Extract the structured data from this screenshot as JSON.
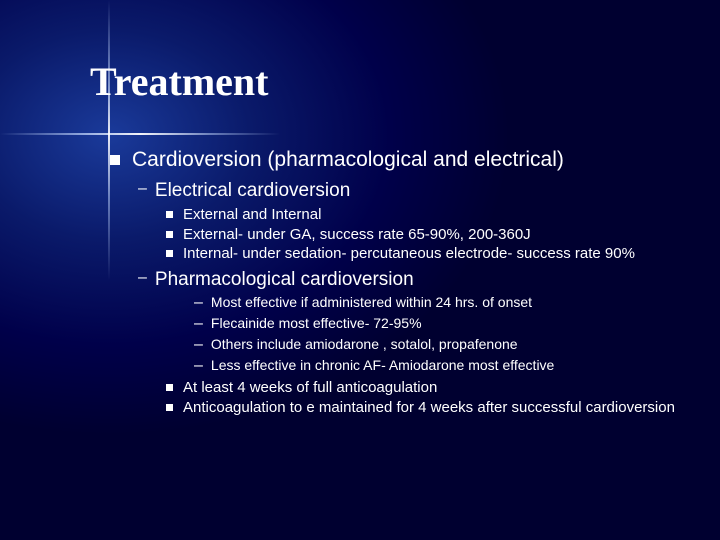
{
  "colors": {
    "background_center": "#1a3a9a",
    "background_mid": "#0a1a6a",
    "background_outer": "#000030",
    "text": "#ffffff",
    "bullet": "#ffffff",
    "flare": "#ffffff"
  },
  "typography": {
    "title_font": "Times New Roman",
    "title_size_pt": 30,
    "title_weight": "bold",
    "body_font": "Verdana",
    "lvl1_size_pt": 16,
    "lvl2_size_pt": 14,
    "lvl3_size_pt": 11,
    "lvl4_size_pt": 10
  },
  "slide": {
    "title": "Treatment",
    "lvl1": {
      "text": "Cardioversion (pharmacological and electrical)"
    },
    "lvl2a": {
      "dash": "–",
      "text": "Electrical cardioversion"
    },
    "lvl3a": [
      "External and Internal",
      "External- under GA, success rate 65-90%, 200-360J",
      "Internal- under sedation- percutaneous electrode- success rate 90%"
    ],
    "lvl2b": {
      "dash": "–",
      "text": "Pharmacological cardioversion"
    },
    "lvl4b": [
      {
        "dash": "–",
        "text": "Most effective if administered within 24 hrs. of onset"
      },
      {
        "dash": "–",
        "text": "Flecainide most effective- 72-95%"
      },
      {
        "dash": "–",
        "text": "Others include amiodarone , sotalol, propafenone"
      },
      {
        "dash": "–",
        "text": "Less effective in chronic AF- Amiodarone most effective"
      }
    ],
    "lvl3c": [
      "At least 4 weeks of full anticoagulation",
      "Anticoagulation to e maintained for 4 weeks after successful cardioversion"
    ]
  }
}
